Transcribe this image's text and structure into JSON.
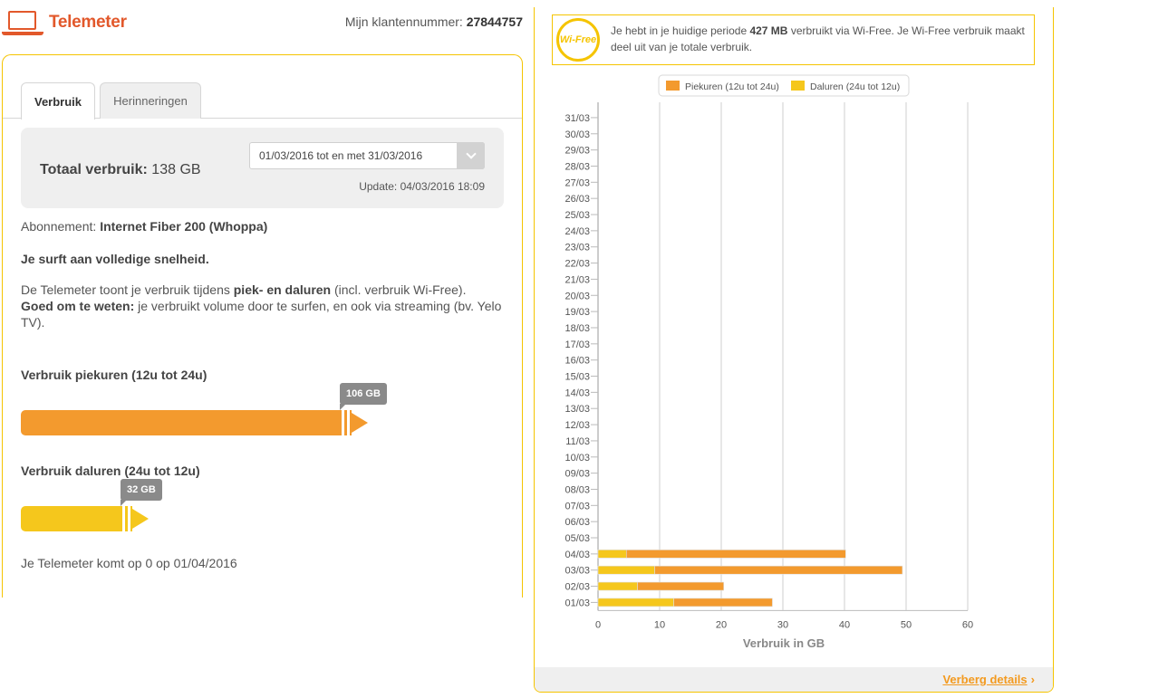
{
  "header": {
    "title": "Telemeter",
    "customer_label": "Mijn klantennummer:",
    "customer_number": "27844757"
  },
  "tabs": [
    {
      "label": "Verbruik",
      "active": true
    },
    {
      "label": "Herinneringen",
      "active": false
    }
  ],
  "summary": {
    "total_label": "Totaal verbruik:",
    "total_value": "138 GB",
    "period_selected": "01/03/2016 tot en met 31/03/2016",
    "update_text": "Update: 04/03/2016 18:09"
  },
  "subscription": {
    "label": "Abonnement:",
    "value": "Internet Fiber 200 (Whoppa)"
  },
  "speed_message": "Je surft aan volledige snelheid.",
  "info": {
    "part1": "De Telemeter toont je verbruik tijdens ",
    "bold1": "piek- en daluren",
    "part2": " (incl. verbruik Wi-Free).",
    "bold2": "Goed om te weten:",
    "part3": " je verbruikt volume door te surfen, en ook via streaming (bv. Yelo TV)."
  },
  "usage": {
    "peak": {
      "title": "Verbruik piekuren (12u tot 24u)",
      "label": "106 GB",
      "value_gb": 106,
      "color": "#f39a2e"
    },
    "offpeak": {
      "title": "Verbruik daluren (24u tot 12u)",
      "label": "32 GB",
      "value_gb": 32,
      "color": "#f5c71c"
    }
  },
  "reset_text": "Je Telemeter komt op 0 op 01/04/2016",
  "wifi": {
    "logo_text": "Wi-Free",
    "part1": "Je hebt in je huidige periode ",
    "amount": "427 MB",
    "part2": " verbruikt via Wi-Free. Je Wi-Free verbruik maakt deel uit van je totale verbruik."
  },
  "chart_data": {
    "type": "bar",
    "orientation": "horizontal",
    "stacked": true,
    "categories": [
      "31/03",
      "30/03",
      "29/03",
      "28/03",
      "27/03",
      "26/03",
      "25/03",
      "24/03",
      "23/03",
      "22/03",
      "21/03",
      "20/03",
      "19/03",
      "18/03",
      "17/03",
      "16/03",
      "15/03",
      "14/03",
      "13/03",
      "12/03",
      "11/03",
      "10/03",
      "09/03",
      "08/03",
      "07/03",
      "06/03",
      "05/03",
      "04/03",
      "03/03",
      "02/03",
      "01/03"
    ],
    "series": [
      {
        "name": "Daluren (24u tot 12u)",
        "color": "#f5c71c",
        "values": [
          0,
          0,
          0,
          0,
          0,
          0,
          0,
          0,
          0,
          0,
          0,
          0,
          0,
          0,
          0,
          0,
          0,
          0,
          0,
          0,
          0,
          0,
          0,
          0,
          0,
          0,
          0,
          4.6,
          9.2,
          6.4,
          12.3
        ]
      },
      {
        "name": "Piekuren (12u tot 24u)",
        "color": "#f39a2e",
        "values": [
          0,
          0,
          0,
          0,
          0,
          0,
          0,
          0,
          0,
          0,
          0,
          0,
          0,
          0,
          0,
          0,
          0,
          0,
          0,
          0,
          0,
          0,
          0,
          0,
          0,
          0,
          0,
          35.6,
          40.2,
          14.0,
          16.0
        ]
      }
    ],
    "legend_order": [
      "Piekuren (12u tot 24u)",
      "Daluren (24u tot 12u)"
    ],
    "xlabel": "Verbruik in GB",
    "xlim": [
      0,
      60
    ],
    "xticks": [
      0,
      10,
      20,
      30,
      40,
      50,
      60
    ],
    "grid": true,
    "legend_position": "top"
  },
  "footer": {
    "details_link": "Verberg details",
    "arrow": "›"
  }
}
